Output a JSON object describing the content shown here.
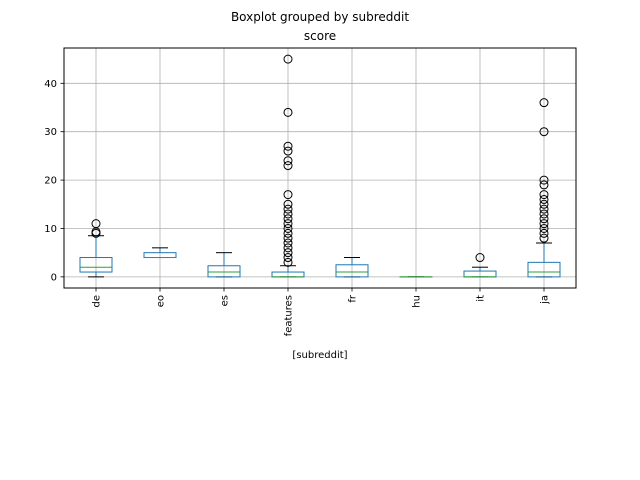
{
  "chart_data": {
    "type": "box",
    "suptitle": "Boxplot grouped by subreddit",
    "title": "score",
    "xlabel": "[subreddit]",
    "ylabel": "",
    "ylim": [
      -2.3,
      47.3
    ],
    "yticks": [
      0,
      10,
      20,
      30,
      40
    ],
    "grid": true,
    "colors": {
      "box": "#1f77b4",
      "median": "#2ca02c",
      "whisker": "#000000",
      "flier": "#000000",
      "grid": "#b0b0b0"
    },
    "categories": [
      "de",
      "eo",
      "es",
      "features",
      "fr",
      "hu",
      "it",
      "ja"
    ],
    "boxes": [
      {
        "category": "de",
        "whislo": 0,
        "q1": 1,
        "med": 2,
        "q3": 4,
        "whishi": 8.5,
        "fliers": [
          9,
          9.3,
          11
        ]
      },
      {
        "category": "eo",
        "whislo": 4,
        "q1": 4,
        "med": 4,
        "q3": 5,
        "whishi": 6,
        "fliers": []
      },
      {
        "category": "es",
        "whislo": 0,
        "q1": 0,
        "med": 1,
        "q3": 2.3,
        "whishi": 5,
        "fliers": []
      },
      {
        "category": "features",
        "whislo": 0,
        "q1": 0,
        "med": 0,
        "q3": 1,
        "whishi": 2.3,
        "fliers": [
          3,
          4,
          5,
          6,
          7,
          8,
          9,
          10,
          11,
          12,
          13,
          14,
          15,
          17,
          23,
          24,
          26,
          27,
          34,
          45
        ]
      },
      {
        "category": "fr",
        "whislo": 0,
        "q1": 0,
        "med": 1,
        "q3": 2.5,
        "whishi": 4,
        "fliers": []
      },
      {
        "category": "hu",
        "whislo": 0,
        "q1": 0,
        "med": 0,
        "q3": 0,
        "whishi": 0,
        "fliers": []
      },
      {
        "category": "it",
        "whislo": 0,
        "q1": 0,
        "med": 0,
        "q3": 1.2,
        "whishi": 2,
        "fliers": [
          4
        ]
      },
      {
        "category": "ja",
        "whislo": 0,
        "q1": 0,
        "med": 1,
        "q3": 3,
        "whishi": 7,
        "fliers": [
          8,
          9,
          10,
          11,
          12,
          13,
          14,
          15,
          16,
          17,
          19,
          20,
          30,
          36
        ]
      }
    ]
  }
}
